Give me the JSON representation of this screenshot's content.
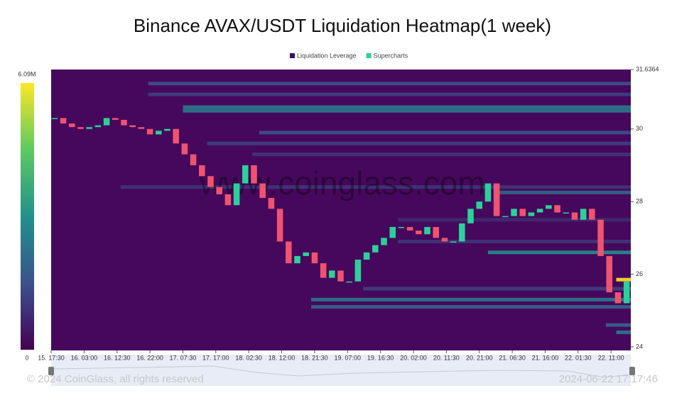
{
  "chart_data": {
    "type": "heatmap",
    "title": "Binance AVAX/USDT Liquidation Heatmap(1 week)",
    "legend": [
      {
        "name": "Liquidation Leverage",
        "color": "#3b0f5e"
      },
      {
        "name": "Supercharts",
        "color": "#2bd19a"
      }
    ],
    "watermark": "www.coinglass.com",
    "footer_left": "© 2024 CoinGlass, all rights reserved",
    "footer_right": "2024-06-22 17:17:46",
    "background": "#46085c",
    "colorscale": [
      "#440154",
      "#3b528b",
      "#21918c",
      "#5ec962",
      "#fde725"
    ],
    "colorbar_ticks": [
      {
        "value": 6090000,
        "label": "6.09M"
      },
      0
    ],
    "xlim": [
      0,
      167.2
    ],
    "xticks": [
      {
        "value": 0,
        "label": "15. 17:30"
      },
      {
        "value": 9.5,
        "label": "16. 03:00"
      },
      {
        "value": 19,
        "label": "16. 12:30"
      },
      {
        "value": 28.5,
        "label": "16. 22:00"
      },
      {
        "value": 38,
        "label": "17. 07:30"
      },
      {
        "value": 47.5,
        "label": "17. 17:00"
      },
      {
        "value": 57,
        "label": "18. 02:30"
      },
      {
        "value": 66.5,
        "label": "18. 12:00"
      },
      {
        "value": 76,
        "label": "18. 21:30"
      },
      {
        "value": 85.5,
        "label": "19. 07:00"
      },
      {
        "value": 95,
        "label": "19. 16:30"
      },
      {
        "value": 104.5,
        "label": "20. 02:00"
      },
      {
        "value": 114,
        "label": "20. 11:30"
      },
      {
        "value": 123.5,
        "label": "20. 21:00"
      },
      {
        "value": 133,
        "label": "21. 06:30"
      },
      {
        "value": 142.5,
        "label": "21. 16:00"
      },
      {
        "value": 152,
        "label": "22. 01:30"
      },
      {
        "value": 161.5,
        "label": "22. 11:00"
      }
    ],
    "ylim": [
      23.9,
      31.6364
    ],
    "yticks": [
      31.6364,
      30,
      28,
      26,
      24
    ],
    "heatmap": {
      "prices": [
        31.25,
        30.95,
        30.6,
        30.5,
        29.9,
        29.6,
        29.3,
        28.4,
        28.25,
        27.5,
        26.9,
        26.6,
        25.85,
        25.6,
        25.3,
        25.1,
        24.6,
        24.4
      ],
      "start": [
        28,
        28,
        38,
        38,
        60,
        45,
        58,
        20,
        128,
        100,
        100,
        126,
        163,
        90,
        75,
        75,
        160,
        163
      ],
      "values": [
        1500000,
        1200000,
        2500000,
        2500000,
        1500000,
        1200000,
        1000000,
        1000000,
        2000000,
        800000,
        1000000,
        3000000,
        6090000,
        1200000,
        2500000,
        2000000,
        2000000,
        2500000
      ]
    },
    "series": [
      {
        "name": "AVAX/USDT",
        "up_color": "#2bd19a",
        "down_color": "#ef5370",
        "x": [
          1,
          3.5,
          6,
          8.5,
          11,
          13.5,
          16,
          18.5,
          21,
          23.5,
          26,
          28.5,
          31,
          33.5,
          36,
          38.5,
          41,
          43.5,
          46,
          48.5,
          51,
          53.5,
          56,
          58.5,
          61,
          63.5,
          66,
          68.5,
          71,
          73.5,
          76,
          78.5,
          81,
          83.5,
          86,
          88.5,
          91,
          93.5,
          96,
          98.5,
          101,
          103.5,
          106,
          108.5,
          111,
          113.5,
          116,
          118.5,
          121,
          123.5,
          126,
          128.5,
          131,
          133.5,
          136,
          138.5,
          141,
          143.5,
          146,
          148.5,
          151,
          153.5,
          156,
          158.5,
          161,
          163.5,
          166
        ],
        "values": [
          30.3,
          30.15,
          30.05,
          30.0,
          30.05,
          30.1,
          30.3,
          30.25,
          30.1,
          30.05,
          30.0,
          29.85,
          29.95,
          30.0,
          29.6,
          29.3,
          29.0,
          28.7,
          28.4,
          28.2,
          27.9,
          28.5,
          29.0,
          28.5,
          28.1,
          27.8,
          26.9,
          26.3,
          26.5,
          26.6,
          26.3,
          25.9,
          26.1,
          25.8,
          25.8,
          26.4,
          26.6,
          26.8,
          27.0,
          27.3,
          27.3,
          27.2,
          27.1,
          27.3,
          27.0,
          26.9,
          26.9,
          27.4,
          27.8,
          28.0,
          28.5,
          27.6,
          27.6,
          27.8,
          27.6,
          27.7,
          27.8,
          27.9,
          27.7,
          27.7,
          27.5,
          27.8,
          27.5,
          26.5,
          25.5,
          25.2,
          25.8
        ]
      }
    ]
  }
}
